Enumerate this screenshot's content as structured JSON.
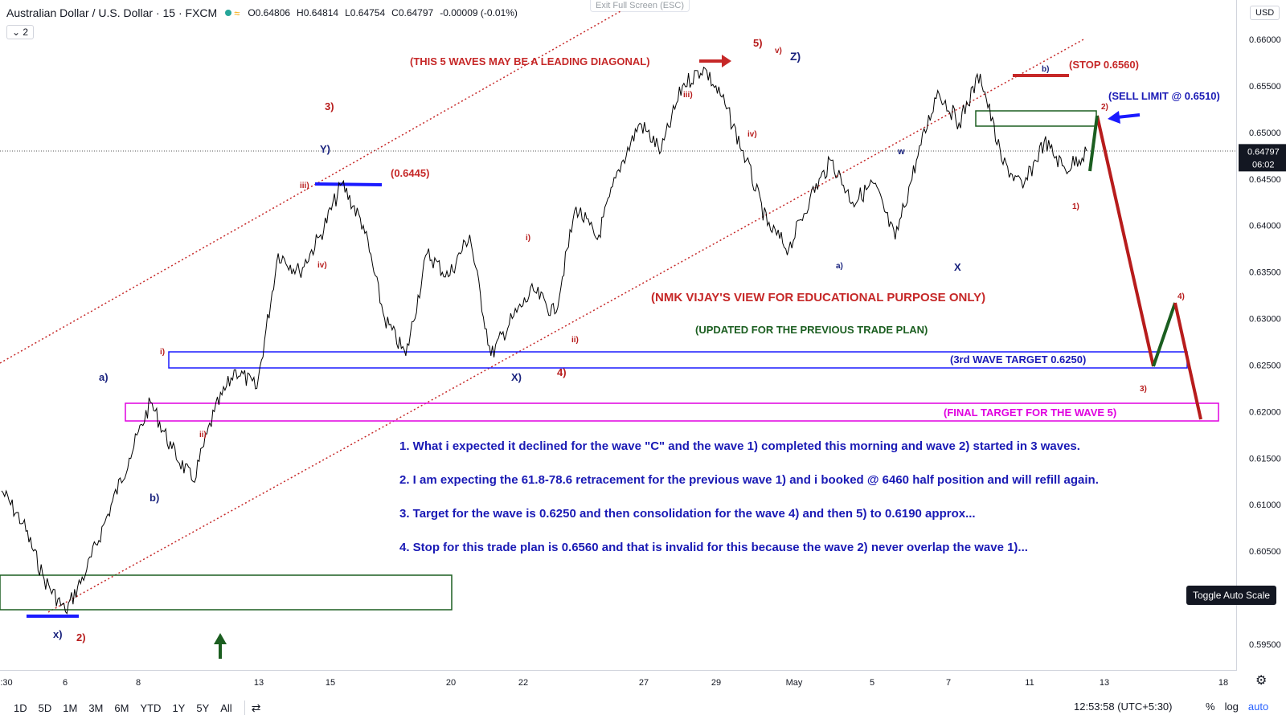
{
  "header": {
    "symbol_title": "Australian Dollar / U.S. Dollar · 15 · FXCM",
    "open": "O0.64806",
    "high": "H0.64814",
    "low": "L0.64754",
    "close": "C0.64797",
    "change": "-0.00009 (-0.01%)",
    "exit_fullscreen": "Exit Full Screen (ESC)",
    "collapse_label": "2",
    "currency": "USD"
  },
  "toggle_auto_scale": "Toggle Auto Scale",
  "price_axis": {
    "ticks": [
      "0.66000",
      "0.65500",
      "0.65000",
      "0.64500",
      "0.64000",
      "0.63500",
      "0.63000",
      "0.62500",
      "0.62000",
      "0.61500",
      "0.61000",
      "0.60500",
      "0.59500"
    ],
    "last_price": "0.64797",
    "countdown": "06:02"
  },
  "time_axis": {
    "ticks": [
      ":30",
      "6",
      "8",
      "13",
      "15",
      "20",
      "22",
      "27",
      "29",
      "May",
      "5",
      "7",
      "11",
      "13",
      "18"
    ]
  },
  "bottom_bar": {
    "ranges": [
      "1D",
      "5D",
      "1M",
      "3M",
      "6M",
      "YTD",
      "1Y",
      "5Y",
      "All"
    ],
    "clock": "12:53:58 (UTC+5:30)",
    "scale_options": [
      "%",
      "log",
      "auto"
    ]
  },
  "colors": {
    "candles": "#000000",
    "trend_line": "#b71c1c",
    "wave_blue": "#1a237e",
    "wave_red": "#b71c1c",
    "target_box_blue": "#1a1aff",
    "target_box_magenta": "#e000e0",
    "zone_green": "#1b5e20",
    "projection_red": "#b71c1c",
    "projection_green": "#1b5e20",
    "note_text": "#1a1ab5",
    "accent_blue": "#2962ff"
  },
  "chart_data": {
    "type": "line",
    "series": [
      {
        "values": [
          0.6115,
          0.608,
          0.602,
          0.5985,
          0.603,
          0.609,
          0.615,
          0.621,
          0.616,
          0.6125,
          0.62,
          0.6245,
          0.6225,
          0.637,
          0.635,
          0.639,
          0.6445,
          0.64,
          0.63,
          0.626,
          0.637,
          0.6345,
          0.639,
          0.626,
          0.63,
          0.633,
          0.6305,
          0.642,
          0.6385,
          0.646,
          0.651,
          0.648,
          0.655,
          0.657,
          0.653,
          0.647,
          0.64,
          0.6375,
          0.643,
          0.647,
          0.6425,
          0.6445,
          0.6385,
          0.647,
          0.6545,
          0.651,
          0.6563,
          0.647,
          0.644,
          0.649,
          0.646,
          0.648
        ]
      }
    ],
    "annotations": {
      "texts": [
        "(THIS 5 WAVES MAY BE A LEADING DIAGONAL)",
        "(NMK VIJAY'S VIEW FOR EDUCATIONAL PURPOSE ONLY)",
        "(UPDATED FOR THE PREVIOUS TRADE PLAN)",
        "(0.6445)",
        "(STOP 0.6560)",
        "(SELL LIMIT @ 0.6510)",
        "(3rd WAVE TARGET 0.6250)",
        "(FINAL TARGET FOR THE WAVE 5)"
      ],
      "notes": [
        "1. What i expected it declined for the wave \"C\" and the wave 1) completed this morning and wave 2) started in 3 waves.",
        "2. I am expecting the 61.8-78.6 retracement for the previous wave 1) and i booked @ 6460 half position and will refill again.",
        "3. Target for the wave is 0.6250  and then consolidation for the wave 4) and then 5) to 0.6190 approx...",
        "4. Stop for this trade plan is 0.6560 and that is invalid for this because the wave 2) never overlap the wave 1)..."
      ],
      "wave_labels": [
        "x)",
        "2)",
        "a)",
        "b)",
        "i)",
        "ii)",
        "iii)",
        "iv)",
        "3)",
        "Y)",
        "X)",
        "4)",
        "i)",
        "ii)",
        "iii)",
        "iv)",
        "5)",
        "v)",
        "Z)",
        "a)",
        "w",
        "X",
        "b)",
        "1)",
        "2)",
        "3)",
        "4)"
      ]
    }
  }
}
